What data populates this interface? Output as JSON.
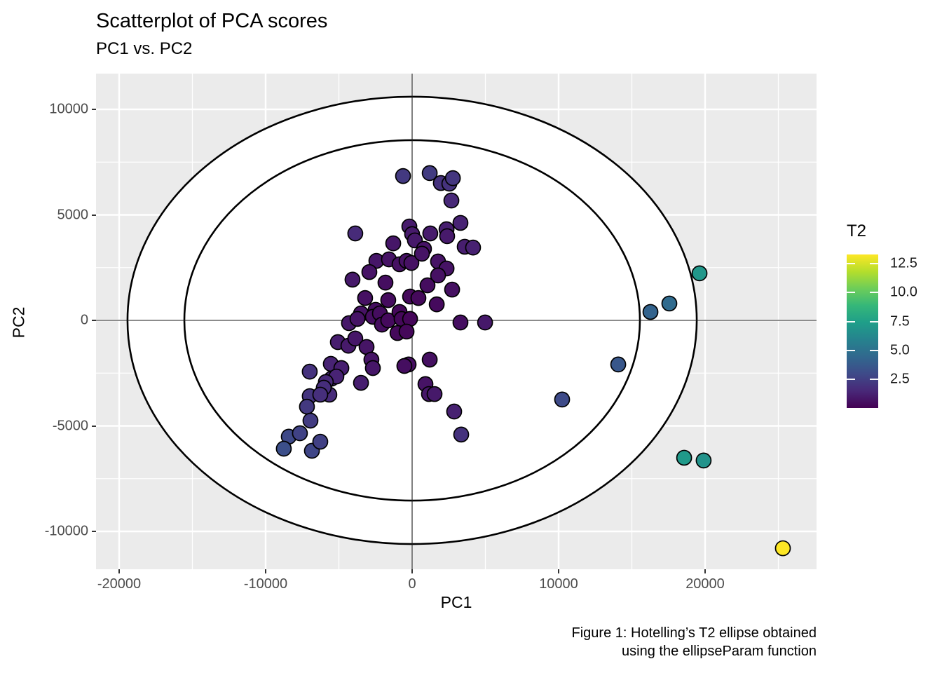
{
  "title": "Scatterplot of PCA scores",
  "subtitle": "PC1 vs. PC2",
  "caption_line1": "Figure 1: Hotelling’s T2 ellipse obtained",
  "caption_line2": "using the ellipseParam function",
  "colors": {
    "panel_background": "#EBEBEB",
    "grid": "#FFFFFF",
    "ellipse_stroke": "#000000",
    "ellipse_fill": "#FFFFFF",
    "point_stroke": "#000000",
    "crosshair": "#1A1A1A",
    "tick_label": "#4D4D4D",
    "tick_mark": "#333333"
  },
  "chart_data": {
    "type": "scatter",
    "title": "Scatterplot of PCA scores",
    "subtitle": "PC1 vs. PC2",
    "caption": "Figure 1: Hotelling’s T2 ellipse obtained using the ellipseParam function",
    "xlabel": "PC1",
    "ylabel": "PC2",
    "xlim": [
      -21580,
      27610
    ],
    "ylim": [
      -11790,
      11690
    ],
    "x_ticks": [
      -20000,
      -10000,
      0,
      10000,
      20000
    ],
    "x_minor_ticks": [
      -15000,
      -5000,
      5000,
      15000,
      25000
    ],
    "y_ticks": [
      10000,
      5000,
      0,
      -5000,
      -10000
    ],
    "y_minor_ticks": [
      7500,
      2500,
      -2500,
      -7500
    ],
    "grid": true,
    "crosshair": {
      "x": 0,
      "y": 0
    },
    "ellipses": [
      {
        "name": "outer-hotelling-ellipse",
        "cx": 0,
        "cy": 0,
        "rx": 19430,
        "ry": 10600
      },
      {
        "name": "inner-hotelling-ellipse",
        "cx": 0,
        "cy": 0,
        "rx": 15550,
        "ry": 8540
      }
    ],
    "legend": {
      "title": "T2",
      "position": "right",
      "ticks": [
        12.5,
        10.0,
        7.5,
        5.0,
        2.5
      ],
      "domain": [
        0,
        13.3
      ],
      "palette": "viridis"
    },
    "viridis_stops": [
      {
        "t": 0.0,
        "color": "#440154"
      },
      {
        "t": 0.111,
        "color": "#482878"
      },
      {
        "t": 0.222,
        "color": "#3e4a89"
      },
      {
        "t": 0.333,
        "color": "#31688e"
      },
      {
        "t": 0.444,
        "color": "#26828e"
      },
      {
        "t": 0.556,
        "color": "#1f9e89"
      },
      {
        "t": 0.667,
        "color": "#35b779"
      },
      {
        "t": 0.778,
        "color": "#6dcd59"
      },
      {
        "t": 0.889,
        "color": "#b4de2c"
      },
      {
        "t": 1.0,
        "color": "#fde725"
      }
    ],
    "point_fields": [
      "PC1",
      "PC2",
      "T2"
    ],
    "points": [
      [
        -620,
        6840,
        2.2
      ],
      [
        1200,
        6980,
        2.3
      ],
      [
        1960,
        6510,
        1.9
      ],
      [
        2540,
        6480,
        1.9
      ],
      [
        2780,
        6740,
        2.1
      ],
      [
        2680,
        5680,
        1.5
      ],
      [
        3300,
        4620,
        1.3
      ],
      [
        -190,
        4450,
        1.0
      ],
      [
        0,
        4090,
        0.95
      ],
      [
        190,
        3790,
        0.9
      ],
      [
        1240,
        4120,
        1.0
      ],
      [
        2350,
        4320,
        1.1
      ],
      [
        2390,
        3990,
        0.95
      ],
      [
        -3880,
        4120,
        1.6
      ],
      [
        -1290,
        3650,
        0.8
      ],
      [
        3590,
        3490,
        1.1
      ],
      [
        4160,
        3450,
        1.2
      ],
      [
        810,
        3390,
        0.7
      ],
      [
        -2440,
        2820,
        0.8
      ],
      [
        -1580,
        2890,
        0.7
      ],
      [
        -860,
        2660,
        0.6
      ],
      [
        -380,
        2820,
        0.65
      ],
      [
        -50,
        2720,
        0.6
      ],
      [
        670,
        3160,
        0.7
      ],
      [
        1770,
        2790,
        0.7
      ],
      [
        2350,
        2460,
        0.7
      ],
      [
        1770,
        2130,
        0.6
      ],
      [
        -2920,
        2290,
        0.7
      ],
      [
        -4070,
        1930,
        0.9
      ],
      [
        -1820,
        1790,
        0.5
      ],
      [
        1050,
        1660,
        0.45
      ],
      [
        2730,
        1460,
        0.55
      ],
      [
        -3210,
        1060,
        0.6
      ],
      [
        -1630,
        960,
        0.4
      ],
      [
        -140,
        1130,
        0.3
      ],
      [
        430,
        1060,
        0.3
      ],
      [
        1680,
        760,
        0.35
      ],
      [
        -2490,
        500,
        0.5
      ],
      [
        -3490,
        330,
        0.65
      ],
      [
        -4310,
        -130,
        0.85
      ],
      [
        -3730,
        70,
        0.7
      ],
      [
        -2680,
        170,
        0.5
      ],
      [
        -2200,
        330,
        0.45
      ],
      [
        -2060,
        -200,
        0.45
      ],
      [
        -1630,
        0,
        0.35
      ],
      [
        -860,
        400,
        0.25
      ],
      [
        -720,
        70,
        0.25
      ],
      [
        -140,
        70,
        0.2
      ],
      [
        -1000,
        -600,
        0.3
      ],
      [
        -380,
        -530,
        0.25
      ],
      [
        -5070,
        -1030,
        1.1
      ],
      [
        -4350,
        -1200,
        0.95
      ],
      [
        -3880,
        -860,
        0.8
      ],
      [
        -3110,
        -1260,
        0.75
      ],
      [
        -5550,
        -2060,
        1.3
      ],
      [
        -4830,
        -2260,
        1.15
      ],
      [
        -2780,
        -1860,
        0.75
      ],
      [
        -2680,
        -2260,
        0.8
      ],
      [
        -5500,
        -2760,
        1.4
      ],
      [
        -3490,
        -2960,
        1.1
      ],
      [
        -5650,
        -3520,
        1.6
      ],
      [
        -240,
        -2090,
        0.5
      ],
      [
        1200,
        -1860,
        0.55
      ],
      [
        -530,
        -2160,
        0.5
      ],
      [
        910,
        -3020,
        0.7
      ],
      [
        1150,
        -3490,
        0.85
      ],
      [
        1530,
        -3490,
        0.9
      ],
      [
        2870,
        -4320,
        1.2
      ],
      [
        3350,
        -5410,
        1.9
      ],
      [
        3300,
        -100,
        0.5
      ],
      [
        4980,
        -100,
        0.9
      ],
      [
        -6990,
        -2430,
        1.9
      ],
      [
        -5170,
        -2660,
        1.3
      ],
      [
        -5890,
        -2920,
        1.5
      ],
      [
        -6030,
        -3190,
        1.7
      ],
      [
        -6990,
        -3590,
        2.0
      ],
      [
        -6270,
        -3520,
        1.8
      ],
      [
        -7180,
        -4090,
        2.2
      ],
      [
        -6940,
        -4750,
        2.3
      ],
      [
        -8420,
        -5510,
        2.9
      ],
      [
        -7660,
        -5350,
        2.6
      ],
      [
        -8760,
        -6080,
        3.2
      ],
      [
        -6840,
        -6180,
        2.8
      ],
      [
        -6270,
        -5750,
        2.5
      ],
      [
        19620,
        2230,
        7.0
      ],
      [
        17560,
        800,
        4.6
      ],
      [
        16270,
        400,
        4.2
      ],
      [
        14070,
        -2090,
        3.6
      ],
      [
        10240,
        -3750,
        3.0
      ],
      [
        18570,
        -6510,
        7.2
      ],
      [
        19900,
        -6640,
        6.8
      ],
      [
        25310,
        -10800,
        13.3
      ]
    ]
  }
}
